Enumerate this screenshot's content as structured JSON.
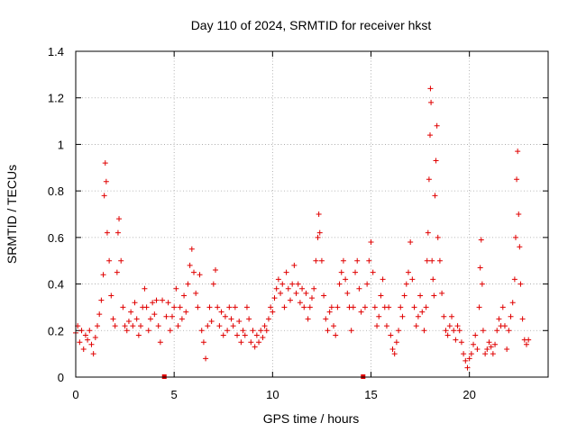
{
  "chart_data": {
    "type": "scatter",
    "title": "Day 110 of 2024, SRMTID for receiver hkst",
    "xlabel": "GPS time / hours",
    "ylabel": "SRMTID / TECUs",
    "xlim": [
      0,
      24
    ],
    "ylim": [
      0,
      1.4
    ],
    "xticks": [
      0,
      5,
      10,
      15,
      20
    ],
    "xtick_labels": [
      "0",
      "5",
      "10",
      "15",
      "20"
    ],
    "yticks": [
      0,
      0.2,
      0.4,
      0.6,
      0.8,
      1,
      1.2,
      1.4
    ],
    "ytick_labels": [
      "0",
      "0.2",
      "0.4",
      "0.6",
      "0.8",
      "1",
      "1.2",
      "1.4"
    ],
    "grid": true,
    "marker": "+",
    "color": "#e00000",
    "gap_markers_x": [
      4.5,
      14.6
    ],
    "series": [
      {
        "name": "SRMTID",
        "points": [
          [
            0.0,
            0.19
          ],
          [
            0.1,
            0.22
          ],
          [
            0.2,
            0.15
          ],
          [
            0.3,
            0.2
          ],
          [
            0.4,
            0.12
          ],
          [
            0.5,
            0.18
          ],
          [
            0.6,
            0.16
          ],
          [
            0.7,
            0.2
          ],
          [
            0.8,
            0.14
          ],
          [
            0.9,
            0.1
          ],
          [
            1.0,
            0.17
          ],
          [
            1.1,
            0.22
          ],
          [
            1.2,
            0.27
          ],
          [
            1.3,
            0.33
          ],
          [
            1.4,
            0.44
          ],
          [
            1.45,
            0.78
          ],
          [
            1.5,
            0.92
          ],
          [
            1.55,
            0.84
          ],
          [
            1.6,
            0.62
          ],
          [
            1.7,
            0.5
          ],
          [
            1.8,
            0.35
          ],
          [
            1.9,
            0.25
          ],
          [
            2.0,
            0.22
          ],
          [
            2.1,
            0.45
          ],
          [
            2.15,
            0.62
          ],
          [
            2.2,
            0.68
          ],
          [
            2.3,
            0.5
          ],
          [
            2.4,
            0.3
          ],
          [
            2.5,
            0.22
          ],
          [
            2.6,
            0.2
          ],
          [
            2.7,
            0.24
          ],
          [
            2.8,
            0.28
          ],
          [
            2.9,
            0.22
          ],
          [
            3.0,
            0.32
          ],
          [
            3.1,
            0.25
          ],
          [
            3.2,
            0.18
          ],
          [
            3.3,
            0.22
          ],
          [
            3.4,
            0.3
          ],
          [
            3.5,
            0.38
          ],
          [
            3.6,
            0.3
          ],
          [
            3.7,
            0.2
          ],
          [
            3.8,
            0.25
          ],
          [
            3.9,
            0.32
          ],
          [
            4.0,
            0.27
          ],
          [
            4.1,
            0.33
          ],
          [
            4.2,
            0.22
          ],
          [
            4.3,
            0.15
          ],
          [
            4.4,
            0.33
          ],
          [
            4.6,
            0.26
          ],
          [
            4.7,
            0.32
          ],
          [
            4.8,
            0.2
          ],
          [
            4.9,
            0.26
          ],
          [
            5.0,
            0.3
          ],
          [
            5.1,
            0.38
          ],
          [
            5.2,
            0.22
          ],
          [
            5.3,
            0.3
          ],
          [
            5.4,
            0.25
          ],
          [
            5.5,
            0.35
          ],
          [
            5.6,
            0.28
          ],
          [
            5.7,
            0.4
          ],
          [
            5.8,
            0.48
          ],
          [
            5.9,
            0.55
          ],
          [
            6.0,
            0.45
          ],
          [
            6.1,
            0.36
          ],
          [
            6.2,
            0.3
          ],
          [
            6.3,
            0.44
          ],
          [
            6.4,
            0.2
          ],
          [
            6.5,
            0.15
          ],
          [
            6.6,
            0.08
          ],
          [
            6.7,
            0.22
          ],
          [
            6.8,
            0.3
          ],
          [
            6.9,
            0.24
          ],
          [
            7.0,
            0.4
          ],
          [
            7.1,
            0.46
          ],
          [
            7.2,
            0.3
          ],
          [
            7.3,
            0.22
          ],
          [
            7.4,
            0.28
          ],
          [
            7.5,
            0.18
          ],
          [
            7.6,
            0.26
          ],
          [
            7.7,
            0.2
          ],
          [
            7.8,
            0.3
          ],
          [
            7.9,
            0.25
          ],
          [
            8.0,
            0.22
          ],
          [
            8.1,
            0.3
          ],
          [
            8.2,
            0.18
          ],
          [
            8.3,
            0.24
          ],
          [
            8.4,
            0.15
          ],
          [
            8.5,
            0.2
          ],
          [
            8.6,
            0.18
          ],
          [
            8.7,
            0.3
          ],
          [
            8.8,
            0.25
          ],
          [
            8.9,
            0.15
          ],
          [
            9.0,
            0.2
          ],
          [
            9.1,
            0.13
          ],
          [
            9.2,
            0.18
          ],
          [
            9.3,
            0.15
          ],
          [
            9.4,
            0.2
          ],
          [
            9.5,
            0.17
          ],
          [
            9.6,
            0.22
          ],
          [
            9.7,
            0.2
          ],
          [
            9.8,
            0.25
          ],
          [
            9.9,
            0.3
          ],
          [
            10.0,
            0.28
          ],
          [
            10.1,
            0.34
          ],
          [
            10.2,
            0.38
          ],
          [
            10.3,
            0.42
          ],
          [
            10.4,
            0.36
          ],
          [
            10.5,
            0.4
          ],
          [
            10.6,
            0.3
          ],
          [
            10.7,
            0.45
          ],
          [
            10.8,
            0.38
          ],
          [
            10.9,
            0.33
          ],
          [
            11.0,
            0.4
          ],
          [
            11.1,
            0.48
          ],
          [
            11.2,
            0.36
          ],
          [
            11.3,
            0.4
          ],
          [
            11.4,
            0.32
          ],
          [
            11.5,
            0.38
          ],
          [
            11.6,
            0.3
          ],
          [
            11.7,
            0.36
          ],
          [
            11.8,
            0.25
          ],
          [
            11.9,
            0.3
          ],
          [
            12.0,
            0.34
          ],
          [
            12.1,
            0.38
          ],
          [
            12.2,
            0.5
          ],
          [
            12.3,
            0.6
          ],
          [
            12.35,
            0.7
          ],
          [
            12.4,
            0.62
          ],
          [
            12.5,
            0.5
          ],
          [
            12.6,
            0.35
          ],
          [
            12.7,
            0.25
          ],
          [
            12.8,
            0.2
          ],
          [
            12.9,
            0.28
          ],
          [
            13.0,
            0.3
          ],
          [
            13.1,
            0.22
          ],
          [
            13.2,
            0.18
          ],
          [
            13.3,
            0.3
          ],
          [
            13.4,
            0.4
          ],
          [
            13.5,
            0.45
          ],
          [
            13.6,
            0.5
          ],
          [
            13.7,
            0.42
          ],
          [
            13.8,
            0.36
          ],
          [
            13.9,
            0.3
          ],
          [
            14.0,
            0.2
          ],
          [
            14.1,
            0.3
          ],
          [
            14.2,
            0.45
          ],
          [
            14.3,
            0.5
          ],
          [
            14.4,
            0.38
          ],
          [
            14.5,
            0.28
          ],
          [
            14.7,
            0.3
          ],
          [
            14.8,
            0.4
          ],
          [
            14.9,
            0.5
          ],
          [
            15.0,
            0.58
          ],
          [
            15.1,
            0.45
          ],
          [
            15.2,
            0.3
          ],
          [
            15.3,
            0.22
          ],
          [
            15.4,
            0.26
          ],
          [
            15.5,
            0.35
          ],
          [
            15.6,
            0.42
          ],
          [
            15.7,
            0.3
          ],
          [
            15.8,
            0.22
          ],
          [
            15.9,
            0.3
          ],
          [
            16.0,
            0.18
          ],
          [
            16.1,
            0.12
          ],
          [
            16.2,
            0.1
          ],
          [
            16.3,
            0.15
          ],
          [
            16.4,
            0.2
          ],
          [
            16.5,
            0.3
          ],
          [
            16.6,
            0.26
          ],
          [
            16.7,
            0.35
          ],
          [
            16.8,
            0.4
          ],
          [
            16.9,
            0.45
          ],
          [
            17.0,
            0.58
          ],
          [
            17.1,
            0.42
          ],
          [
            17.2,
            0.3
          ],
          [
            17.3,
            0.22
          ],
          [
            17.4,
            0.26
          ],
          [
            17.5,
            0.35
          ],
          [
            17.6,
            0.28
          ],
          [
            17.7,
            0.2
          ],
          [
            17.8,
            0.3
          ],
          [
            17.85,
            0.5
          ],
          [
            17.9,
            0.62
          ],
          [
            17.95,
            0.85
          ],
          [
            18.0,
            1.04
          ],
          [
            18.02,
            1.24
          ],
          [
            18.05,
            1.18
          ],
          [
            18.1,
            0.5
          ],
          [
            18.15,
            0.42
          ],
          [
            18.2,
            0.35
          ],
          [
            18.25,
            0.78
          ],
          [
            18.3,
            0.93
          ],
          [
            18.35,
            1.08
          ],
          [
            18.4,
            0.6
          ],
          [
            18.5,
            0.5
          ],
          [
            18.6,
            0.36
          ],
          [
            18.7,
            0.26
          ],
          [
            18.8,
            0.2
          ],
          [
            18.9,
            0.18
          ],
          [
            19.0,
            0.22
          ],
          [
            19.1,
            0.26
          ],
          [
            19.2,
            0.2
          ],
          [
            19.3,
            0.16
          ],
          [
            19.4,
            0.22
          ],
          [
            19.5,
            0.2
          ],
          [
            19.6,
            0.15
          ],
          [
            19.7,
            0.1
          ],
          [
            19.8,
            0.07
          ],
          [
            19.9,
            0.04
          ],
          [
            20.0,
            0.08
          ],
          [
            20.1,
            0.1
          ],
          [
            20.2,
            0.14
          ],
          [
            20.3,
            0.18
          ],
          [
            20.4,
            0.12
          ],
          [
            20.5,
            0.3
          ],
          [
            20.55,
            0.47
          ],
          [
            20.6,
            0.59
          ],
          [
            20.65,
            0.4
          ],
          [
            20.7,
            0.2
          ],
          [
            20.8,
            0.1
          ],
          [
            20.9,
            0.12
          ],
          [
            21.0,
            0.15
          ],
          [
            21.1,
            0.13
          ],
          [
            21.2,
            0.1
          ],
          [
            21.3,
            0.14
          ],
          [
            21.4,
            0.2
          ],
          [
            21.5,
            0.25
          ],
          [
            21.6,
            0.22
          ],
          [
            21.7,
            0.3
          ],
          [
            21.8,
            0.22
          ],
          [
            21.9,
            0.12
          ],
          [
            22.0,
            0.2
          ],
          [
            22.1,
            0.26
          ],
          [
            22.2,
            0.32
          ],
          [
            22.3,
            0.42
          ],
          [
            22.35,
            0.6
          ],
          [
            22.4,
            0.85
          ],
          [
            22.45,
            0.97
          ],
          [
            22.5,
            0.7
          ],
          [
            22.55,
            0.56
          ],
          [
            22.6,
            0.4
          ],
          [
            22.7,
            0.25
          ],
          [
            22.8,
            0.16
          ],
          [
            22.9,
            0.14
          ],
          [
            23.0,
            0.16
          ]
        ]
      }
    ]
  }
}
